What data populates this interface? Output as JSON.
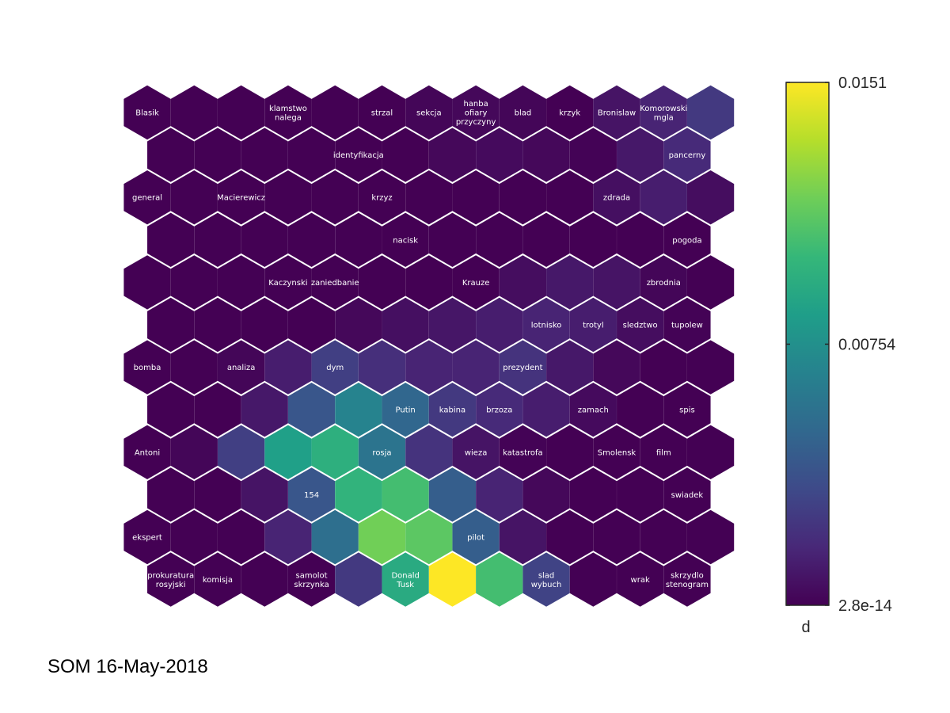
{
  "footer": "SOM 16-May-2018",
  "chart_data": {
    "type": "heatmap",
    "subtype": "som-hexagonal-u-matrix",
    "grid": {
      "rows": 12,
      "cols": 13
    },
    "colormap": [
      "#440154",
      "#482878",
      "#3e4a89",
      "#31688e",
      "#26828e",
      "#1f9e89",
      "#35b779",
      "#6ece58",
      "#b5de2b",
      "#fde725"
    ],
    "colorbar": {
      "title": "d",
      "min": 2.8e-14,
      "max": 0.0151,
      "ticks": [
        {
          "value": 0.0151,
          "label": "0.0151"
        },
        {
          "value": 0.00754,
          "label": "0.00754"
        },
        {
          "value": 2.8e-14,
          "label": "2.8e-14"
        }
      ]
    },
    "values": [
      [
        0.0,
        0.0,
        0.0,
        0.0,
        0.0,
        0.0,
        0.0002,
        0.0003,
        0.0002,
        0.0,
        0.0008,
        0.0015,
        0.0025
      ],
      [
        0.0,
        0.0,
        0.0,
        0.0,
        0.0,
        0.0,
        0.0003,
        0.0004,
        0.0003,
        0.0001,
        0.001,
        0.0018,
        0.0022
      ],
      [
        0.0,
        0.0,
        0.0,
        0.0,
        0.0,
        0.0,
        0.0,
        0.0,
        0.0,
        0.0,
        0.0006,
        0.0012,
        0.0005
      ],
      [
        0.0,
        0.0,
        0.0,
        0.0,
        0.0,
        0.0,
        0.0,
        0.0,
        0.0,
        0.0,
        0.0,
        0.0,
        0.0
      ],
      [
        0.0,
        0.0,
        0.0,
        0.0,
        0.0,
        0.0,
        0.0,
        0.0,
        0.0005,
        0.001,
        0.0008,
        0.0002,
        0.0
      ],
      [
        0.0,
        0.0,
        0.0,
        0.0,
        0.0003,
        0.0006,
        0.0009,
        0.0012,
        0.0015,
        0.0012,
        0.0005,
        0.0001,
        0.0
      ],
      [
        0.0,
        0.0,
        0.0002,
        0.0012,
        0.0028,
        0.002,
        0.0015,
        0.0015,
        0.0022,
        0.001,
        0.0003,
        0.0,
        0.0
      ],
      [
        0.0,
        0.0,
        0.001,
        0.004,
        0.0068,
        0.005,
        0.0025,
        0.0018,
        0.0012,
        0.0004,
        0.0,
        0.0,
        0.0
      ],
      [
        0.0,
        0.0002,
        0.0028,
        0.0085,
        0.0095,
        0.0058,
        0.0022,
        0.0008,
        0.0001,
        0.0,
        0.0,
        0.0,
        0.0
      ],
      [
        0.0,
        0.0,
        0.0008,
        0.004,
        0.0098,
        0.0105,
        0.0045,
        0.0015,
        0.0003,
        0.0,
        0.0,
        0.0,
        0.0
      ],
      [
        0.0,
        0.0,
        0.0,
        0.0015,
        0.0055,
        0.0118,
        0.0112,
        0.0045,
        0.0008,
        0.0,
        0.0,
        0.0,
        0.0
      ],
      [
        0.0,
        0.0,
        0.0,
        0.0,
        0.0025,
        0.0092,
        0.0151,
        0.0105,
        0.003,
        0.0,
        0.0,
        0.0,
        0.0
      ]
    ],
    "labels": [
      {
        "row": 0,
        "col": 0,
        "text": [
          "Blasik"
        ]
      },
      {
        "row": 0,
        "col": 3,
        "text": [
          "klamstwo",
          "nalega"
        ]
      },
      {
        "row": 0,
        "col": 5,
        "text": [
          "strzal"
        ]
      },
      {
        "row": 0,
        "col": 6,
        "text": [
          "sekcja"
        ]
      },
      {
        "row": 0,
        "col": 7,
        "text": [
          "hanba",
          "ofiary",
          "przyczyny"
        ]
      },
      {
        "row": 0,
        "col": 8,
        "text": [
          "blad"
        ]
      },
      {
        "row": 0,
        "col": 9,
        "text": [
          "krzyk"
        ]
      },
      {
        "row": 0,
        "col": 10,
        "text": [
          "Bronislaw"
        ]
      },
      {
        "row": 0,
        "col": 11,
        "text": [
          "Komorowski",
          "mgla"
        ]
      },
      {
        "row": 1,
        "col": 4,
        "text": [
          "identyfikacja"
        ]
      },
      {
        "row": 1,
        "col": 11,
        "text": [
          "pancerny"
        ]
      },
      {
        "row": 2,
        "col": 0,
        "text": [
          "general"
        ]
      },
      {
        "row": 2,
        "col": 2,
        "text": [
          "Macierewicz"
        ]
      },
      {
        "row": 2,
        "col": 5,
        "text": [
          "krzyz"
        ]
      },
      {
        "row": 2,
        "col": 10,
        "text": [
          "zdrada"
        ]
      },
      {
        "row": 3,
        "col": 5,
        "text": [
          "nacisk"
        ]
      },
      {
        "row": 3,
        "col": 11,
        "text": [
          "pogoda"
        ]
      },
      {
        "row": 4,
        "col": 3,
        "text": [
          "Kaczynski"
        ]
      },
      {
        "row": 4,
        "col": 4,
        "text": [
          "zaniedbanie"
        ]
      },
      {
        "row": 4,
        "col": 7,
        "text": [
          "Krauze"
        ]
      },
      {
        "row": 4,
        "col": 11,
        "text": [
          "zbrodnia"
        ]
      },
      {
        "row": 5,
        "col": 8,
        "text": [
          "lotnisko"
        ]
      },
      {
        "row": 5,
        "col": 9,
        "text": [
          "trotyl"
        ]
      },
      {
        "row": 5,
        "col": 10,
        "text": [
          "sledztwo"
        ]
      },
      {
        "row": 5,
        "col": 11,
        "text": [
          "tupolew"
        ]
      },
      {
        "row": 6,
        "col": 0,
        "text": [
          "bomba"
        ]
      },
      {
        "row": 6,
        "col": 2,
        "text": [
          "analiza"
        ]
      },
      {
        "row": 6,
        "col": 4,
        "text": [
          "dym"
        ]
      },
      {
        "row": 6,
        "col": 8,
        "text": [
          "prezydent"
        ]
      },
      {
        "row": 7,
        "col": 5,
        "text": [
          "Putin"
        ]
      },
      {
        "row": 7,
        "col": 6,
        "text": [
          "kabina"
        ]
      },
      {
        "row": 7,
        "col": 7,
        "text": [
          "brzoza"
        ]
      },
      {
        "row": 7,
        "col": 9,
        "text": [
          "zamach"
        ]
      },
      {
        "row": 7,
        "col": 11,
        "text": [
          "spis"
        ]
      },
      {
        "row": 8,
        "col": 0,
        "text": [
          "Antoni"
        ]
      },
      {
        "row": 8,
        "col": 5,
        "text": [
          "rosja"
        ]
      },
      {
        "row": 8,
        "col": 7,
        "text": [
          "wieza"
        ]
      },
      {
        "row": 8,
        "col": 8,
        "text": [
          "katastrofa"
        ]
      },
      {
        "row": 8,
        "col": 10,
        "text": [
          "Smolensk"
        ]
      },
      {
        "row": 8,
        "col": 11,
        "text": [
          "film"
        ]
      },
      {
        "row": 9,
        "col": 3,
        "text": [
          "154"
        ]
      },
      {
        "row": 9,
        "col": 11,
        "text": [
          "swiadek"
        ]
      },
      {
        "row": 10,
        "col": 0,
        "text": [
          "ekspert"
        ]
      },
      {
        "row": 10,
        "col": 7,
        "text": [
          "pilot"
        ]
      },
      {
        "row": 11,
        "col": 0,
        "text": [
          "prokuratura",
          "rosyjski"
        ]
      },
      {
        "row": 11,
        "col": 1,
        "text": [
          "komisja"
        ]
      },
      {
        "row": 11,
        "col": 3,
        "text": [
          "samolot",
          "skrzynka"
        ]
      },
      {
        "row": 11,
        "col": 5,
        "text": [
          "Donald",
          "Tusk"
        ]
      },
      {
        "row": 11,
        "col": 8,
        "text": [
          "slad",
          "wybuch"
        ]
      },
      {
        "row": 11,
        "col": 10,
        "text": [
          "wrak"
        ]
      },
      {
        "row": 11,
        "col": 11,
        "text": [
          "skrzydlo",
          "stenogram"
        ]
      }
    ]
  }
}
